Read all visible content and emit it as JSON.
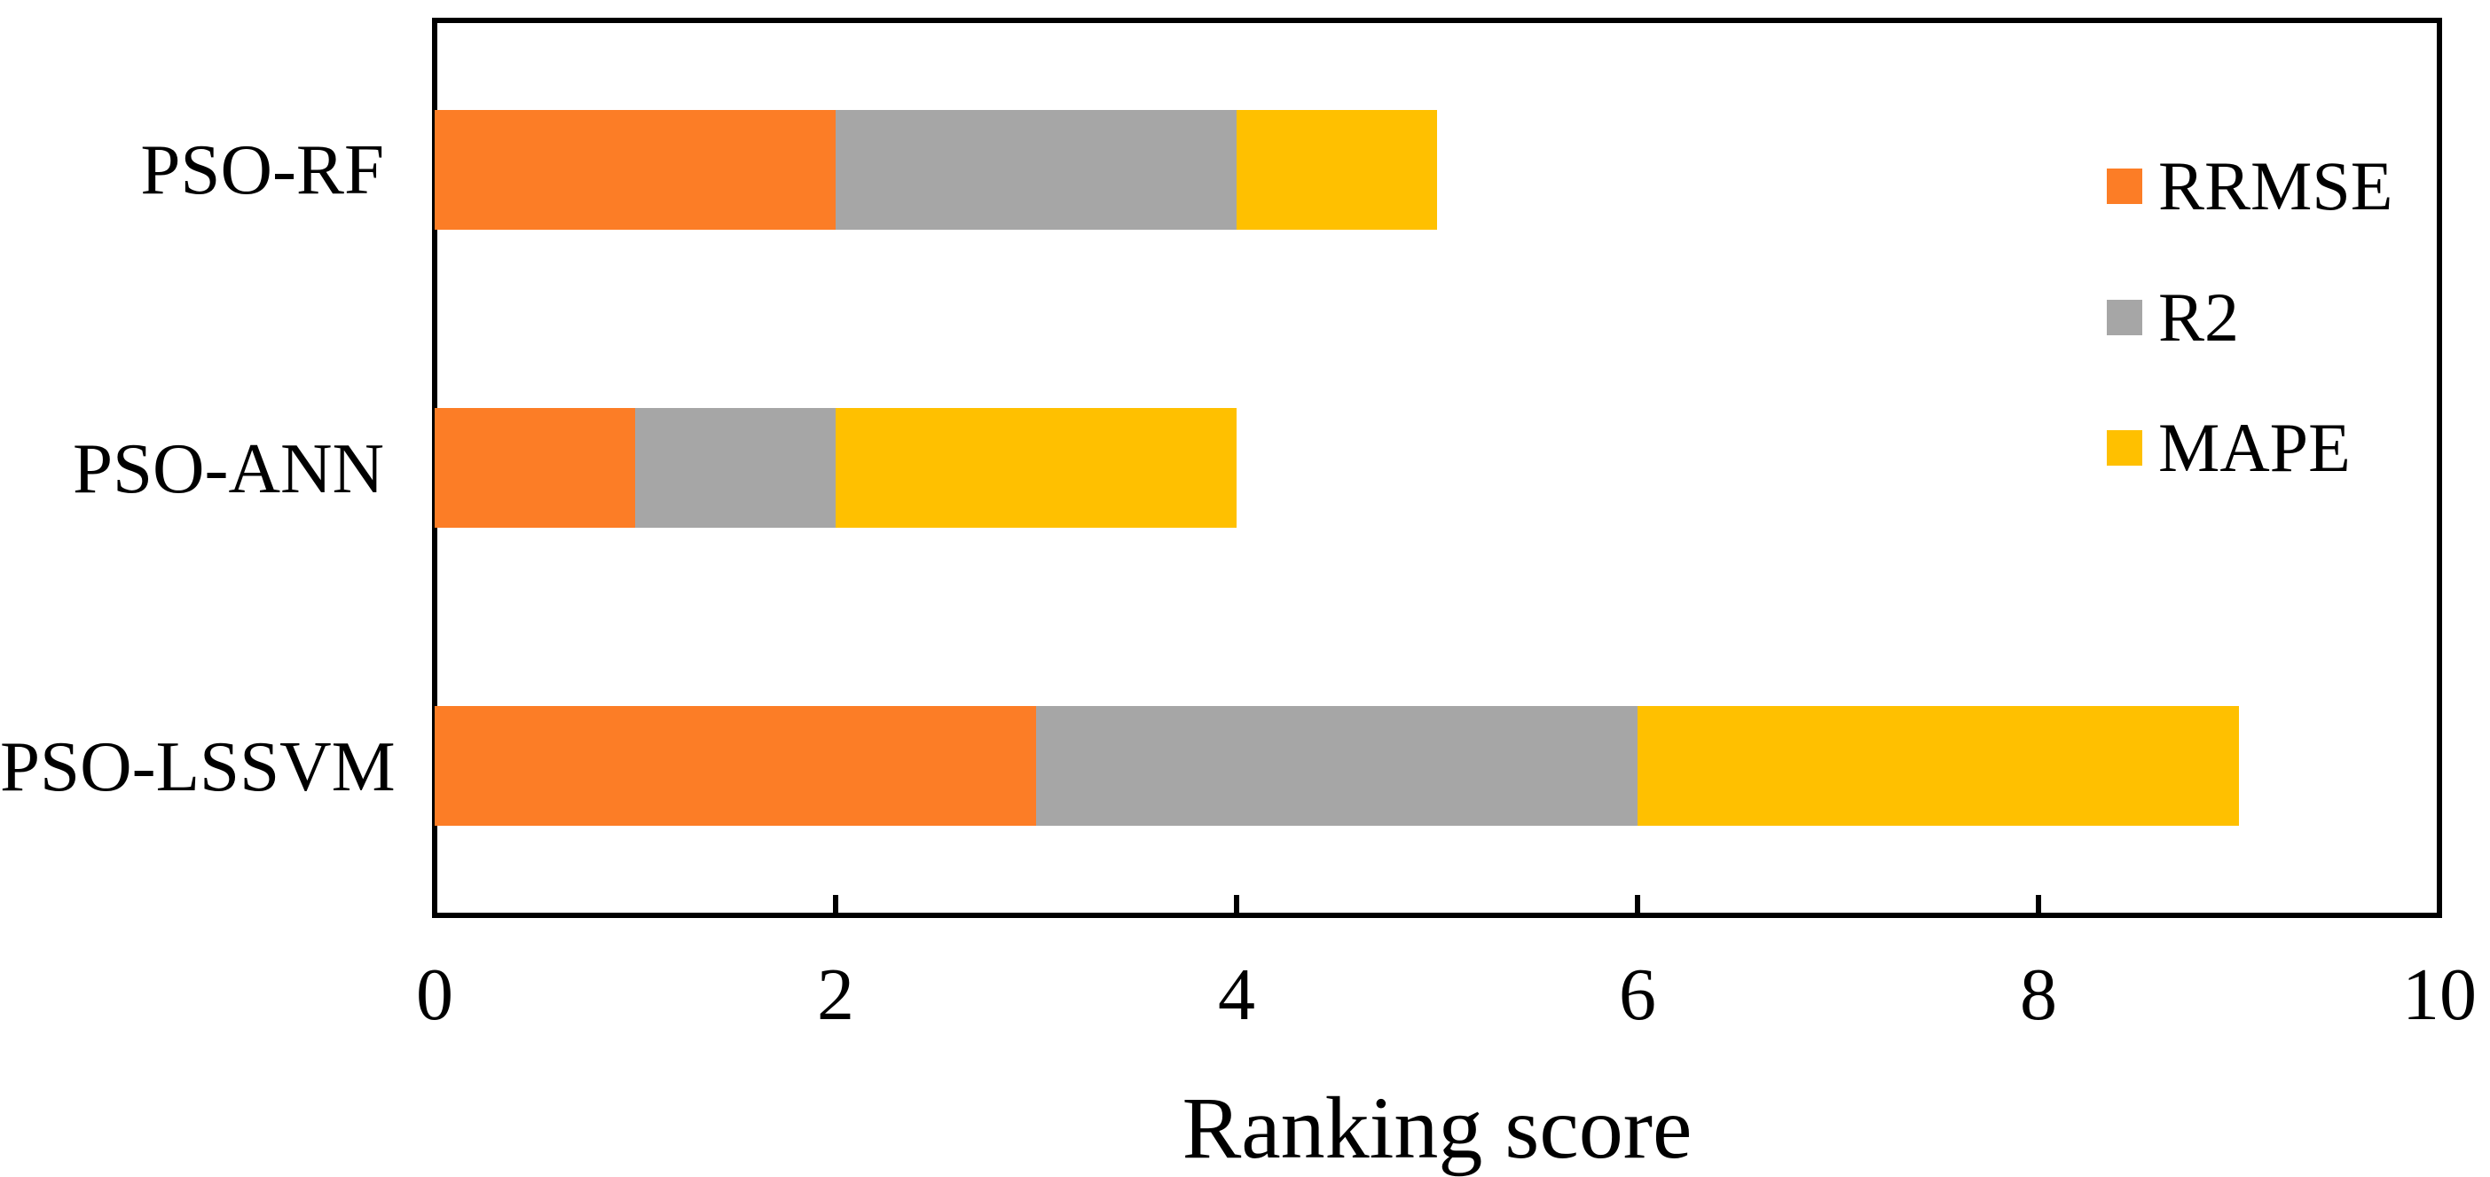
{
  "chart_data": {
    "type": "bar",
    "orientation": "horizontal",
    "stacked": true,
    "title": "",
    "xlabel": "Ranking score",
    "ylabel": "",
    "xlim": [
      0,
      10
    ],
    "xticks": [
      0,
      2,
      4,
      6,
      8,
      10
    ],
    "grid": false,
    "legend_position": "inside-right",
    "categories": [
      "PSO-RF",
      "PSO-ANN",
      "PSO-LSSVM"
    ],
    "series": [
      {
        "name": "RRMSE",
        "color": "#FC7D26",
        "values": [
          2,
          1,
          3
        ]
      },
      {
        "name": "R2",
        "color": "#A6A6A6",
        "values": [
          2,
          1,
          3
        ]
      },
      {
        "name": "MAPE",
        "color": "#FFC000",
        "values": [
          1,
          2,
          3
        ]
      }
    ],
    "totals": [
      5,
      4,
      9
    ],
    "axis_color": "#000000",
    "background_color": "#FFFFFF"
  }
}
